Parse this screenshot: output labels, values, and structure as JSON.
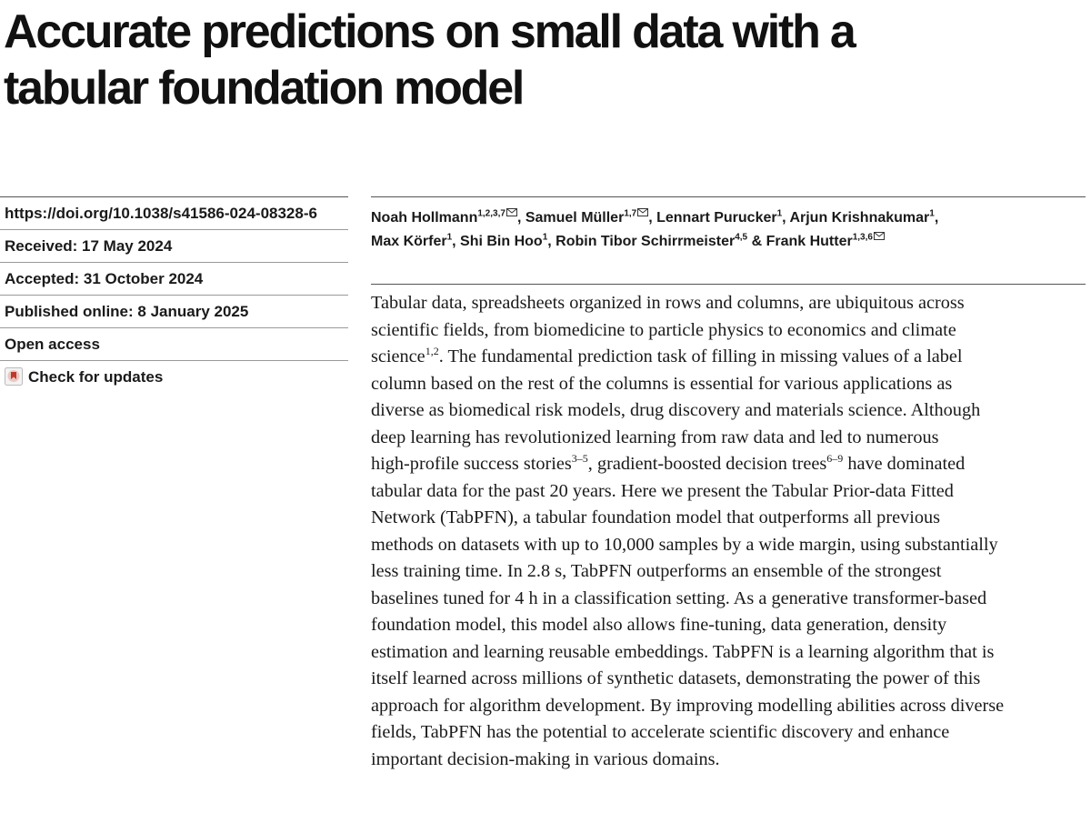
{
  "title_lines": [
    "Accurate predictions on small data with a",
    "tabular foundation model"
  ],
  "meta": {
    "doi": "https://doi.org/10.1038/s41586-024-08328-6",
    "received": "Received: 17 May 2024",
    "accepted": "Accepted: 31 October 2024",
    "published": "Published online: 8 January 2025",
    "open_access": "Open access",
    "check_updates": "Check for updates"
  },
  "authors": [
    {
      "name": "Noah Hollmann",
      "aff": "1,2,3,7",
      "email": true,
      "sep": ", "
    },
    {
      "name": "Samuel Müller",
      "aff": "1,7",
      "email": true,
      "sep": ", "
    },
    {
      "name": "Lennart Purucker",
      "aff": "1",
      "email": false,
      "sep": ", "
    },
    {
      "name": "Arjun Krishnakumar",
      "aff": "1",
      "email": false,
      "sep": ","
    },
    {
      "name": "Max Körfer",
      "aff": "1",
      "email": false,
      "sep": ", "
    },
    {
      "name": "Shi Bin Hoo",
      "aff": "1",
      "email": false,
      "sep": ", "
    },
    {
      "name": "Robin Tibor Schirrmeister",
      "aff": "4,5",
      "email": false,
      "sep": " & "
    },
    {
      "name": "Frank Hutter",
      "aff": "1,3,6",
      "email": true,
      "sep": ""
    }
  ],
  "abstract": {
    "l1": "Tabular data, spreadsheets organized in rows and columns, are ubiquitous across",
    "l2": "scientific fields, from biomedicine to particle physics to economics and climate",
    "l3a": "science",
    "l3sup": "1,2",
    "l3b": ". The fundamental prediction task of filling in missing values of a label",
    "l4": "column based on the rest of the columns is essential for various applications as",
    "l5": "diverse as biomedical risk models, drug discovery and materials science. Although",
    "l6": "deep learning has revolutionized learning from raw data and led to numerous",
    "l7a": "high-profile success stories",
    "l7sup1": "3–5",
    "l7b": ", gradient-boosted decision trees",
    "l7sup2": "6–9",
    "l7c": " have dominated",
    "l8": "tabular data for the past 20 years. Here we present the Tabular Prior-data Fitted",
    "l9": "Network (TabPFN), a tabular foundation model that outperforms all previous",
    "l10": "methods on datasets with up to 10,000 samples by a wide margin, using substantially",
    "l11": "less training time. In 2.8 s, TabPFN outperforms an ensemble of the strongest",
    "l12": "baselines tuned for 4 h in a classification setting. As a generative transformer-based",
    "l13": "foundation model, this model also allows fine-tuning, data generation, density",
    "l14": "estimation and learning reusable embeddings. TabPFN is a learning algorithm that is",
    "l15": "itself learned across millions of synthetic datasets, demonstrating the power of this",
    "l16": "approach for algorithm development. By improving modelling abilities across diverse",
    "l17": "fields, TabPFN has the potential to accelerate scientific discovery and enhance",
    "l18": "important decision-making in various domains."
  }
}
